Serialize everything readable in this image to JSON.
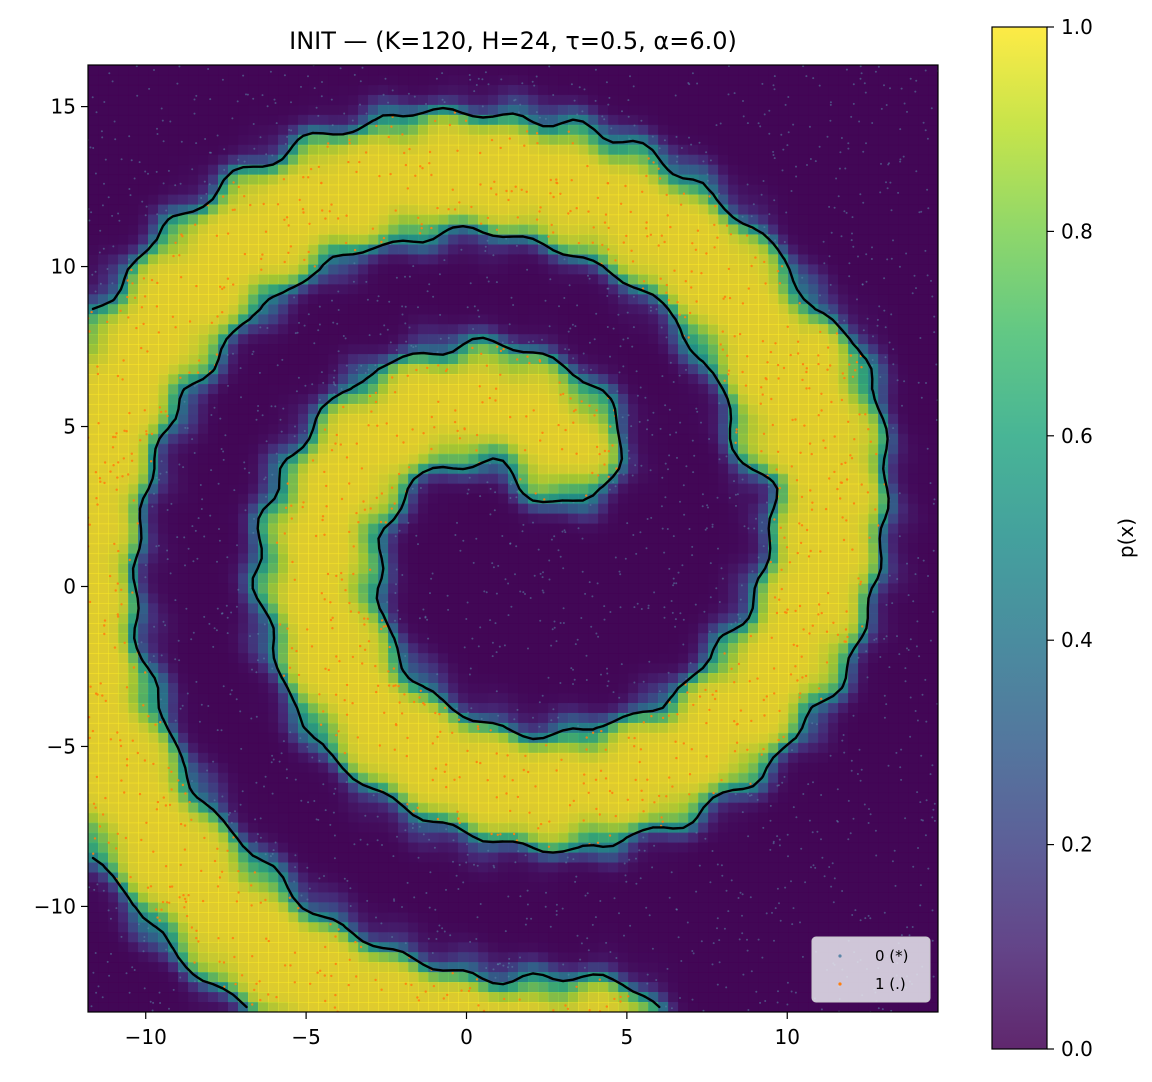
{
  "chart_data": {
    "type": "heatmap",
    "title": "INIT — (K=120, H=24, τ=0.5, α=6.0)",
    "xlabel": "",
    "ylabel": "",
    "xlim": [
      -11.8,
      14.7
    ],
    "ylim": [
      -13.3,
      16.3
    ],
    "x_ticks": [
      -10,
      -5,
      0,
      5,
      10
    ],
    "y_ticks": [
      -10,
      -5,
      0,
      5,
      10,
      15
    ],
    "x_tick_labels": [
      "−10",
      "−5",
      "0",
      "5",
      "10"
    ],
    "y_tick_labels": [
      "−10",
      "−5",
      "0",
      "5",
      "10",
      "15"
    ],
    "colorbar": {
      "label": "p(x)",
      "range": [
        0.0,
        1.0
      ],
      "ticks": [
        0.0,
        0.2,
        0.4,
        0.6,
        0.8,
        1.0
      ],
      "tick_labels": [
        "0.0",
        "0.2",
        "0.4",
        "0.6",
        "0.8",
        "1.0"
      ],
      "colormap": "viridis",
      "alpha": 0.85
    },
    "decision_boundary": {
      "level": 0.5,
      "color": "#000000"
    },
    "structure": {
      "shape": "two interleaved spiral arms",
      "inner_arm": {
        "turn_start_deg": 420,
        "turn_end_deg": 750,
        "radius_start": 3.3,
        "radius_end": 10.5,
        "half_width": 1.8
      },
      "outer_arm": {
        "turn_start_deg": 380,
        "turn_end_deg": 640,
        "radius_start": 9.5,
        "radius_end": 16.0,
        "half_width": 1.9
      },
      "center": [
        1.4,
        1.6
      ]
    },
    "series": [
      {
        "name": "0 (*)",
        "color": "#5b86a8",
        "marker": "*",
        "region": "outside spiral arms"
      },
      {
        "name": "1 (.)",
        "color": "#ff7f0e",
        "marker": ".",
        "region": "inside spiral arms"
      }
    ],
    "legend": {
      "placement": "bottom-right",
      "entries": [
        "0 (*)",
        "1 (.)"
      ]
    }
  },
  "colors": {
    "low": "#440154",
    "high": "#fde725",
    "class0": "#5b86a8",
    "class1": "#ff7f0e"
  }
}
